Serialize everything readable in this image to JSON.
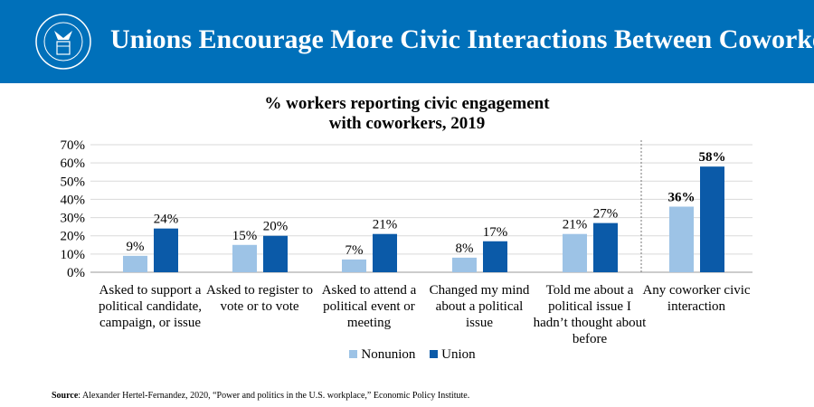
{
  "header": {
    "title": "Unions Encourage More Civic Interactions Between Coworkers",
    "seal_text": "DEPARTMENT OF LABOR UNITED STATES OF AMERICA"
  },
  "colors": {
    "header": "#0070BA",
    "nonunion": "#9DC3E6",
    "union": "#0B5AA8"
  },
  "chart_data": {
    "type": "bar",
    "title": "% workers reporting civic engagement\nwith coworkers, 2019",
    "title_lines": [
      "% workers reporting civic engagement",
      "with coworkers, 2019"
    ],
    "categories": [
      "Asked to support a political candidate, campaign, or issue",
      "Asked to register to vote or to vote",
      "Asked to attend a political event or meeting",
      "Changed my mind about a political issue",
      "Told me about a political issue I hadn’t thought about before",
      "Any coworker civic interaction"
    ],
    "series": [
      {
        "name": "Nonunion",
        "values": [
          9,
          15,
          7,
          8,
          21,
          36
        ]
      },
      {
        "name": "Union",
        "values": [
          24,
          20,
          21,
          17,
          27,
          58
        ]
      }
    ],
    "ylim": [
      0,
      70
    ],
    "yticks": [
      "0%",
      "10%",
      "20%",
      "30%",
      "40%",
      "50%",
      "60%",
      "70%"
    ],
    "grid": true,
    "legend": "bottom",
    "data_labels_suffix": "%"
  },
  "source": {
    "label": "Source",
    "text": ": Alexander Hertel-Fernandez, 2020, “Power and politics in the U.S. workplace,” Economic Policy Institute."
  }
}
